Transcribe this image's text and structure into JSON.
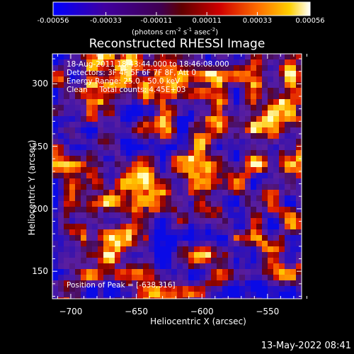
{
  "chart_data": {
    "type": "heatmap",
    "title": "Reconstructed RHESSI Image",
    "xlabel": "Heliocentric X (arcsec)",
    "ylabel": "Heliocentric Y (arcsec)",
    "xlim": [
      -714,
      -524
    ],
    "ylim": [
      128,
      324
    ],
    "x_ticks": [
      -700,
      -650,
      -600,
      -550
    ],
    "y_ticks": [
      150,
      200,
      250,
      300
    ],
    "colorbar": {
      "label": "(photons cm$^{-2}$ s$^{-1}$ asec$^{-2}$)",
      "label_parts": [
        "(photons cm",
        "-2",
        " s",
        "-1",
        " asec",
        "-2",
        ")"
      ],
      "ticks": [
        "-0.00056",
        "-0.00033",
        "-0.00011",
        "0.00011",
        "0.00033",
        "0.00056"
      ],
      "range": [
        -0.00056,
        0.00056
      ],
      "colors": [
        "#0000ff",
        "#3c0096",
        "#6e00a0",
        "#c80000",
        "#ff6400",
        "#ffc800",
        "#ffffff"
      ]
    },
    "annotations": [
      "18-Aug-2011 18:43:44.000 to 18:46:08.000",
      "Detectors: 3F 4F 5F 6F 7F 8F, Att 0",
      "Energy Range: 25.0 - 50.0 keV",
      "Clean     Total counts: 4.45E+03"
    ],
    "peak_text": "Position of Peak = [-638,316]",
    "peak_position": [
      -638,
      316
    ]
  },
  "footer": {
    "timestamp": "13-May-2022 08:41"
  }
}
